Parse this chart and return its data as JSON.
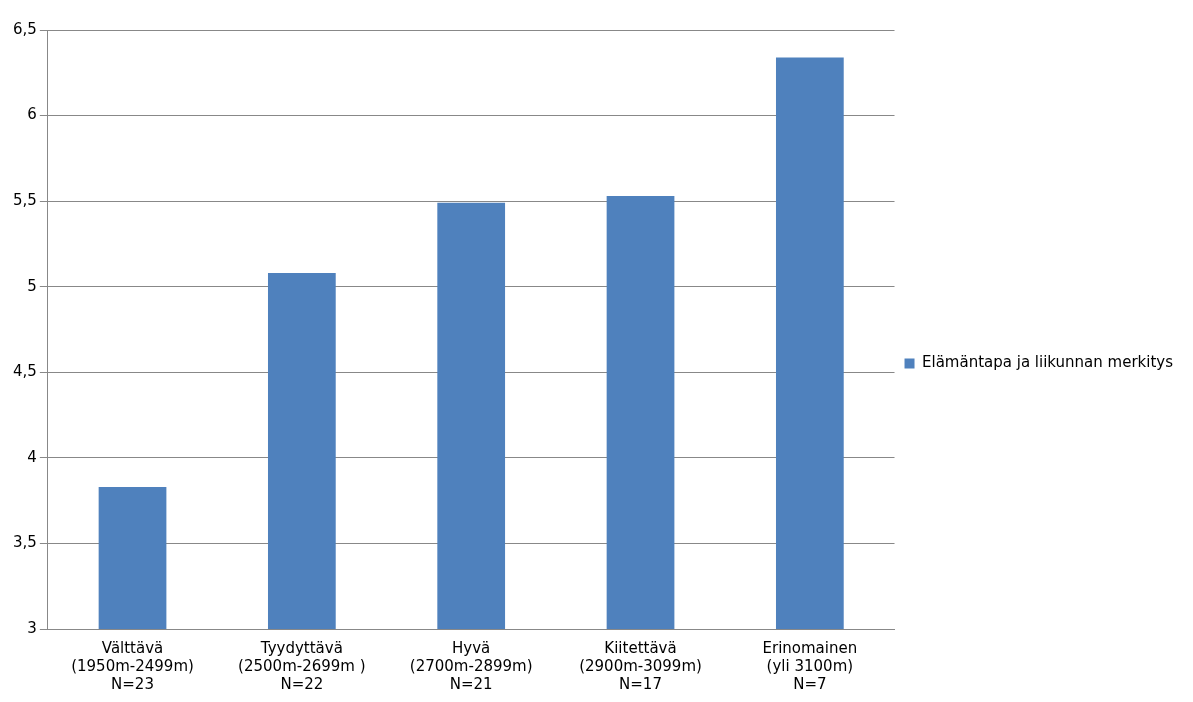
{
  "chart_data": {
    "type": "bar",
    "categories": [
      "Välttävä\n(1950m-2499m)\nN=23",
      "Tyydyttävä\n(2500m-2699m )\nN=22",
      "Hyvä\n(2700m-2899m)\nN=21",
      "Kiitettävä\n(2900m-3099m)\nN=17",
      "Erinomainen\n(yli 3100m)\nN=7"
    ],
    "series": [
      {
        "name": "Elämäntapa ja liikunnan merkitys",
        "color": "#4f81bd",
        "values": [
          3.83,
          5.08,
          5.49,
          5.53,
          6.34
        ]
      }
    ],
    "ylim": [
      3,
      6.5
    ],
    "yticks": [
      3,
      {
        "value": 3.5,
        "label": "3,5"
      },
      4,
      {
        "value": 4.5,
        "label": "4,5"
      },
      5,
      {
        "value": 5.5,
        "label": "5,5"
      },
      6,
      {
        "value": 6.5,
        "label": "6,5"
      }
    ],
    "grid": "y",
    "legend": "right"
  }
}
